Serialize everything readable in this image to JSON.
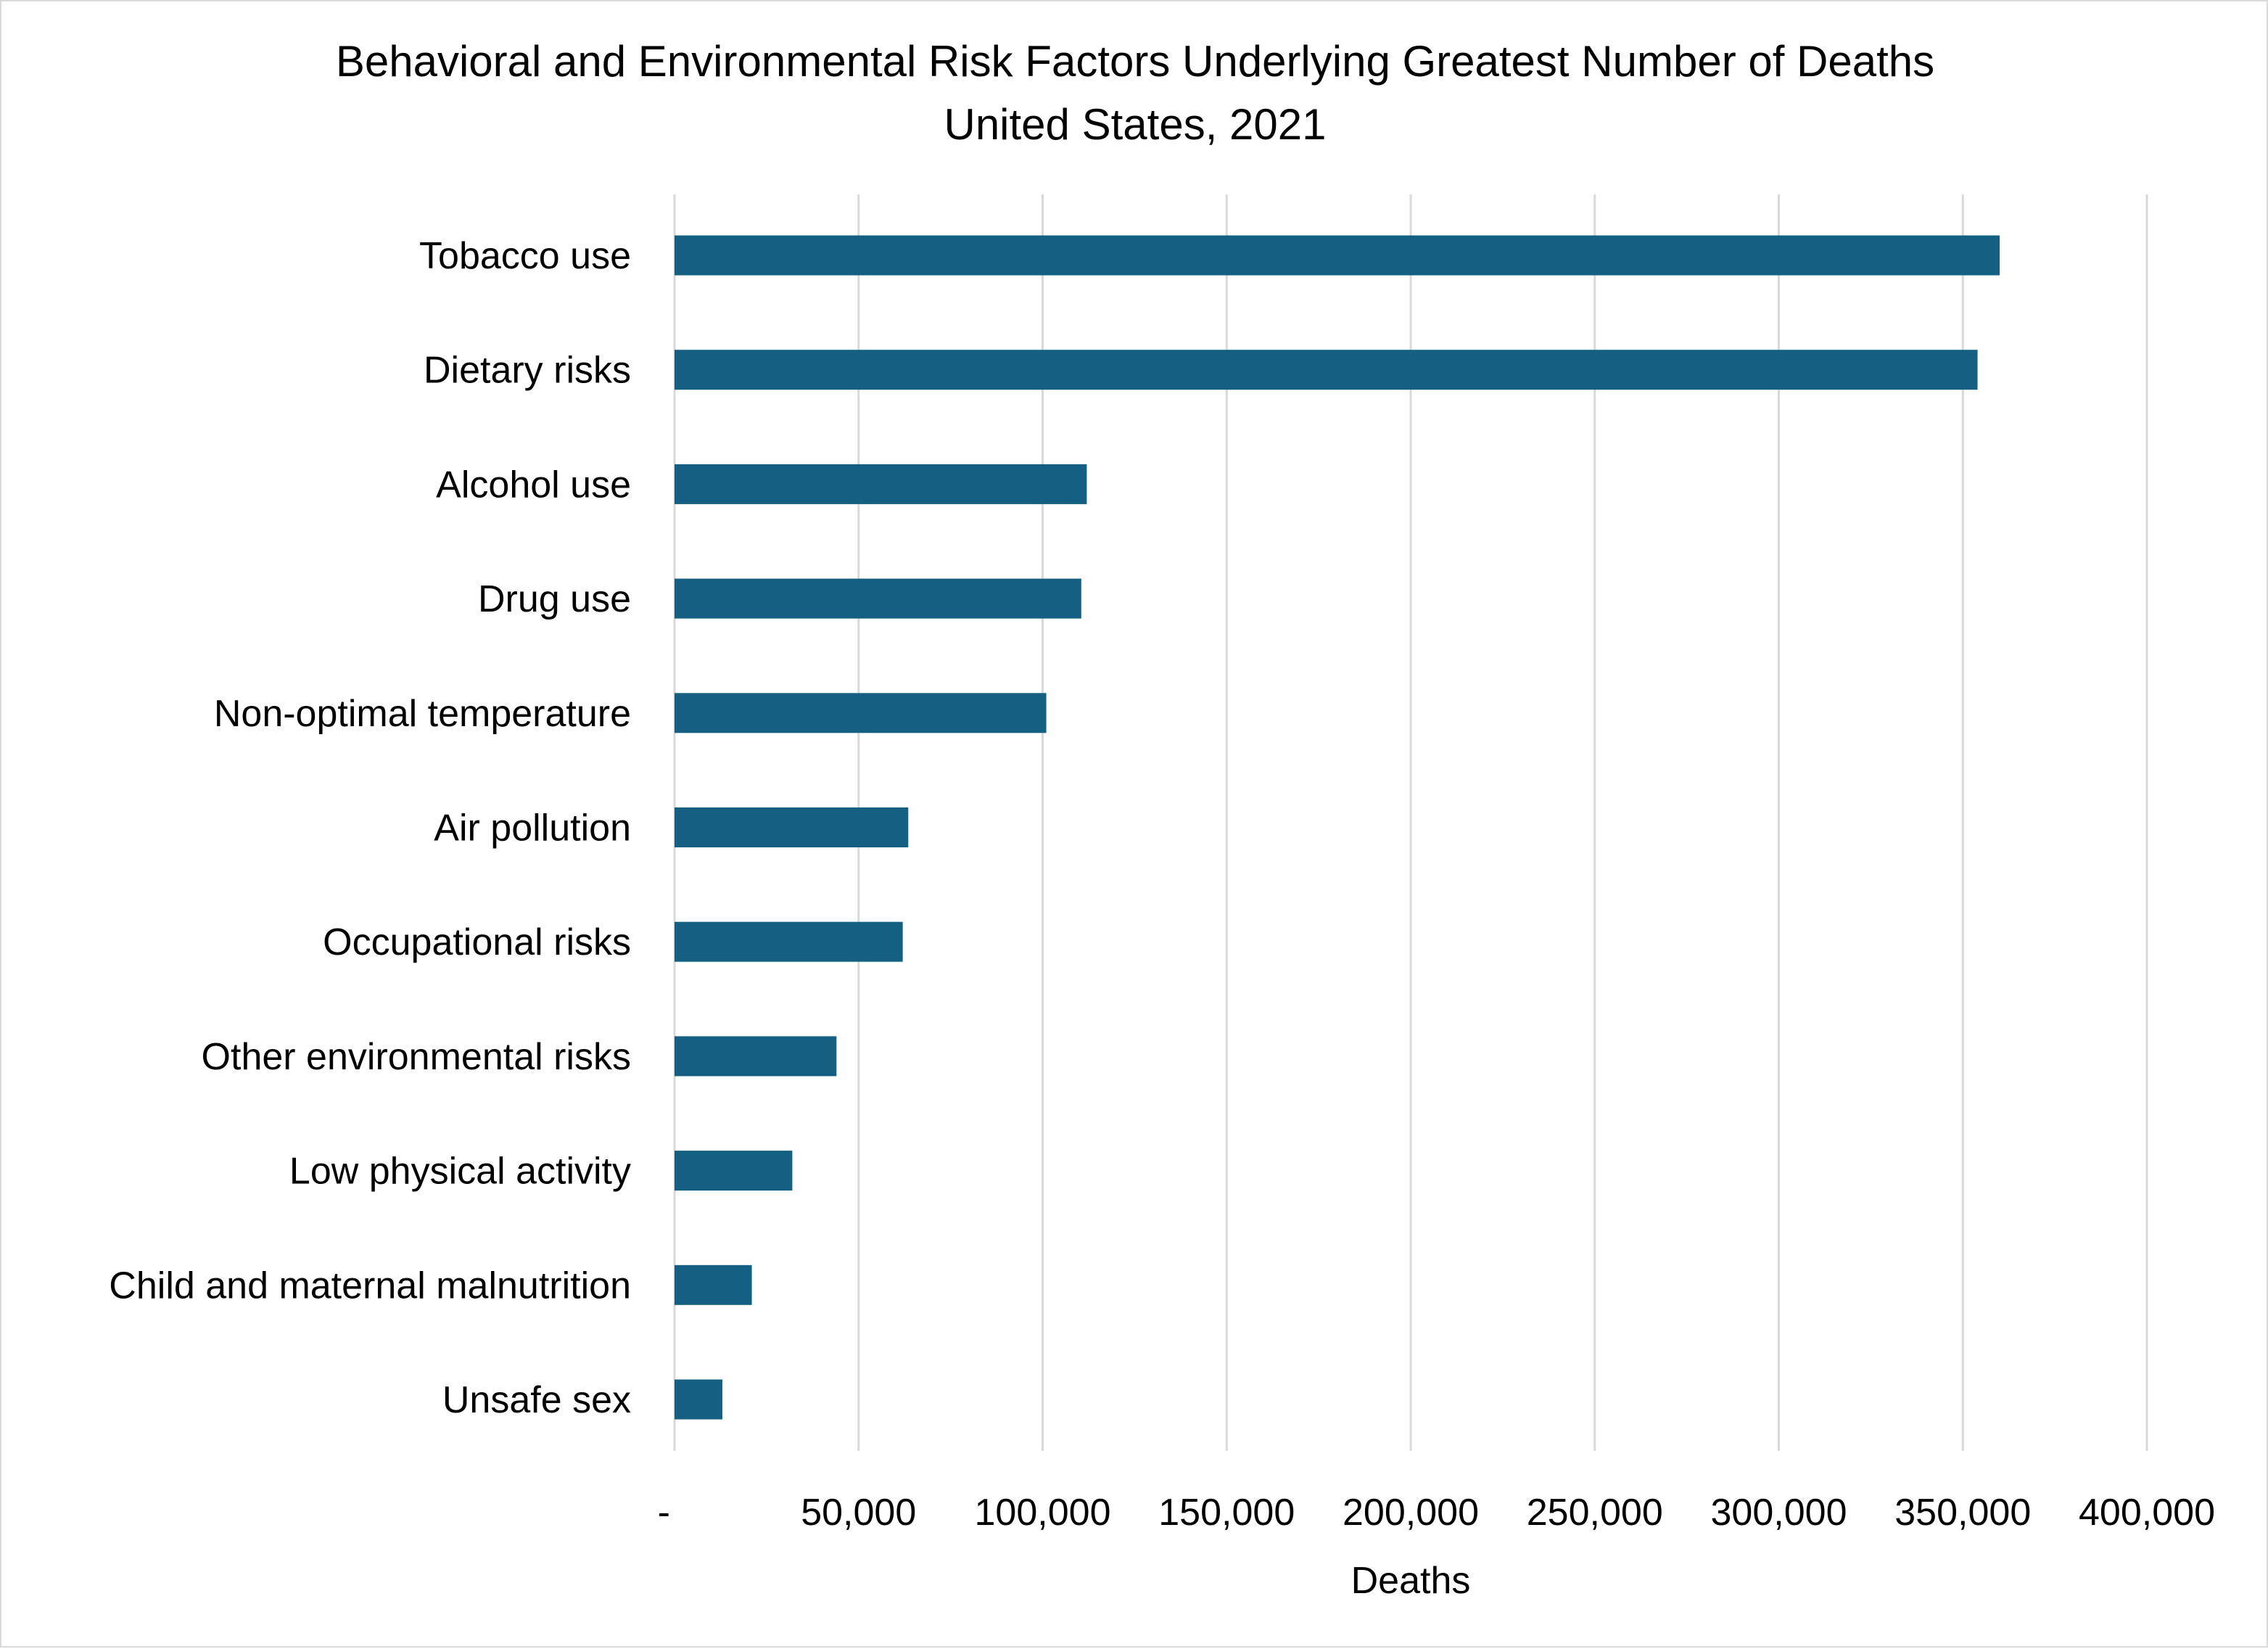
{
  "chart_data": {
    "type": "bar",
    "orientation": "horizontal",
    "title": "Behavioral and Environmental Risk Factors Underlying Greatest Number of  Deaths",
    "subtitle": "United States, 2021",
    "xlabel": "Deaths",
    "ylabel": "",
    "categories": [
      "Tobacco use",
      "Dietary risks",
      "Alcohol use",
      "Drug use",
      "Non-optimal temperature",
      "Air pollution",
      "Occupational risks",
      "Other environmental risks",
      "Low physical activity",
      "Child and maternal malnutrition",
      "Unsafe sex"
    ],
    "values": [
      360000,
      354000,
      112000,
      110500,
      101000,
      63500,
      62000,
      44000,
      32000,
      21000,
      13000
    ],
    "xlim": [
      0,
      400000
    ],
    "xticks": [
      0,
      50000,
      100000,
      150000,
      200000,
      250000,
      300000,
      350000,
      400000
    ],
    "xtick_labels": [
      "-",
      "50,000",
      "100,000",
      "150,000",
      "200,000",
      "250,000",
      "300,000",
      "350,000",
      "400,000"
    ],
    "grid": "vertical",
    "legend": "none",
    "bar_color": "#156082",
    "grid_color": "#d9d9d9"
  }
}
